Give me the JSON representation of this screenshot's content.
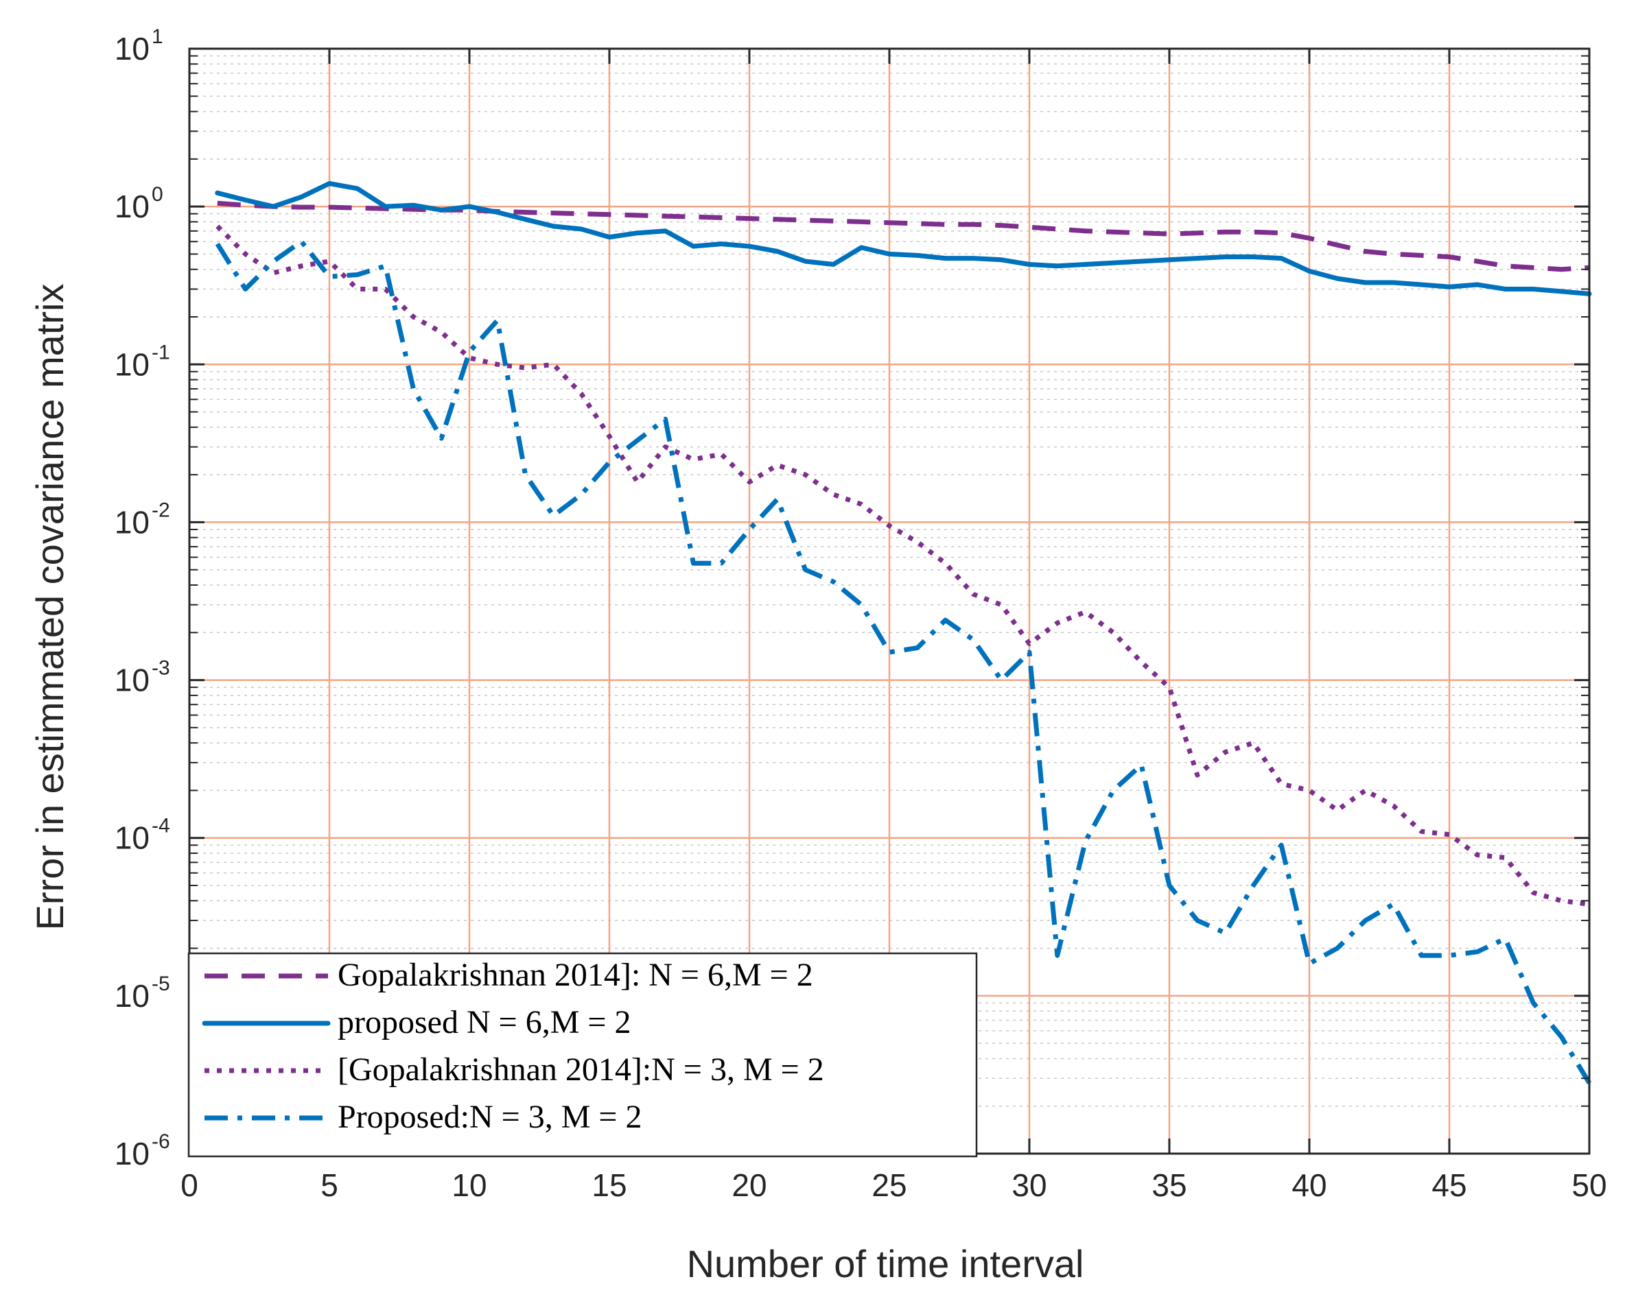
{
  "chart_data": {
    "type": "line",
    "title": "",
    "xlabel": "Number of time interval",
    "ylabel": "Error in estimmated covariance matrix",
    "xlim": [
      0,
      50
    ],
    "ylim": [
      1e-06,
      10
    ],
    "yscale": "log",
    "grid": true,
    "legend_position": "bottom-left",
    "x_ticks": [
      "0",
      "5",
      "10",
      "15",
      "20",
      "25",
      "30",
      "35",
      "40",
      "45",
      "50"
    ],
    "y_tick_base": "10",
    "y_tick_exponents": [
      "-6",
      "-5",
      "-4",
      "-3",
      "-2",
      "-1",
      "0",
      "1"
    ],
    "colors": {
      "purple": "#7e2f8e",
      "blue": "#0072bd",
      "major_grid": "#f4a582",
      "minor_grid": "#c8c8c8",
      "axis": "#262626"
    },
    "series": [
      {
        "name": "Gopalakrishnan 2014]: N = 6,M = 2",
        "color": "#7e2f8e",
        "style": "dashed",
        "x": [
          1,
          2,
          3,
          4,
          5,
          6,
          7,
          8,
          9,
          10,
          11,
          12,
          13,
          14,
          15,
          16,
          17,
          18,
          19,
          20,
          21,
          22,
          23,
          24,
          25,
          26,
          27,
          28,
          29,
          30,
          31,
          32,
          33,
          34,
          35,
          36,
          37,
          38,
          39,
          40,
          41,
          42,
          43,
          44,
          45,
          46,
          47,
          48,
          49,
          50
        ],
        "values": [
          1.05,
          1.02,
          1.0,
          0.99,
          0.99,
          0.98,
          0.97,
          0.96,
          0.95,
          0.95,
          0.93,
          0.92,
          0.91,
          0.9,
          0.89,
          0.88,
          0.87,
          0.86,
          0.85,
          0.84,
          0.83,
          0.82,
          0.81,
          0.8,
          0.79,
          0.78,
          0.77,
          0.77,
          0.76,
          0.74,
          0.72,
          0.7,
          0.69,
          0.68,
          0.67,
          0.68,
          0.69,
          0.69,
          0.68,
          0.63,
          0.57,
          0.52,
          0.5,
          0.49,
          0.48,
          0.45,
          0.42,
          0.41,
          0.4,
          0.41
        ]
      },
      {
        "name": "proposed N = 6,M = 2",
        "color": "#0072bd",
        "style": "solid",
        "x": [
          1,
          2,
          3,
          4,
          5,
          6,
          7,
          8,
          9,
          10,
          11,
          12,
          13,
          14,
          15,
          16,
          17,
          18,
          19,
          20,
          21,
          22,
          23,
          24,
          25,
          26,
          27,
          28,
          29,
          30,
          31,
          32,
          33,
          34,
          35,
          36,
          37,
          38,
          39,
          40,
          41,
          42,
          43,
          44,
          45,
          46,
          47,
          48,
          49,
          50
        ],
        "values": [
          1.22,
          1.1,
          1.0,
          1.15,
          1.4,
          1.3,
          1.0,
          1.02,
          0.95,
          1.0,
          0.92,
          0.83,
          0.75,
          0.72,
          0.64,
          0.68,
          0.7,
          0.56,
          0.58,
          0.56,
          0.52,
          0.45,
          0.43,
          0.55,
          0.5,
          0.49,
          0.47,
          0.47,
          0.46,
          0.43,
          0.42,
          0.43,
          0.44,
          0.45,
          0.46,
          0.47,
          0.48,
          0.48,
          0.47,
          0.39,
          0.35,
          0.33,
          0.33,
          0.32,
          0.31,
          0.32,
          0.3,
          0.3,
          0.29,
          0.28
        ]
      },
      {
        "name": "[Gopalakrishnan 2014]:N = 3, M = 2",
        "color": "#7e2f8e",
        "style": "dotted",
        "x": [
          1,
          2,
          3,
          4,
          5,
          6,
          7,
          8,
          9,
          10,
          11,
          12,
          13,
          14,
          15,
          16,
          17,
          18,
          19,
          20,
          21,
          22,
          23,
          24,
          25,
          26,
          27,
          28,
          29,
          30,
          31,
          32,
          33,
          34,
          35,
          36,
          37,
          38,
          39,
          40,
          41,
          42,
          43,
          44,
          45,
          46,
          47,
          48,
          49,
          50
        ],
        "values": [
          0.75,
          0.5,
          0.38,
          0.42,
          0.45,
          0.3,
          0.3,
          0.2,
          0.16,
          0.11,
          0.1,
          0.095,
          0.1,
          0.065,
          0.035,
          0.018,
          0.03,
          0.025,
          0.027,
          0.018,
          0.023,
          0.02,
          0.015,
          0.013,
          0.0095,
          0.0075,
          0.0055,
          0.0035,
          0.003,
          0.0017,
          0.0023,
          0.0027,
          0.002,
          0.0013,
          0.0009,
          0.00025,
          0.00035,
          0.0004,
          0.00022,
          0.0002,
          0.00015,
          0.0002,
          0.00016,
          0.00011,
          0.000105,
          7.8e-05,
          7.5e-05,
          4.5e-05,
          4e-05,
          3.8e-05
        ]
      },
      {
        "name": "Proposed:N = 3, M = 2",
        "color": "#0072bd",
        "style": "dashdot",
        "x": [
          1,
          2,
          3,
          4,
          5,
          6,
          7,
          8,
          9,
          10,
          11,
          12,
          13,
          14,
          15,
          16,
          17,
          18,
          19,
          20,
          21,
          22,
          23,
          24,
          25,
          26,
          27,
          28,
          29,
          30,
          31,
          32,
          33,
          34,
          35,
          36,
          37,
          38,
          39,
          40,
          41,
          42,
          43,
          44,
          45,
          46,
          47,
          48,
          49,
          50
        ],
        "values": [
          0.58,
          0.3,
          0.45,
          0.6,
          0.36,
          0.37,
          0.42,
          0.07,
          0.034,
          0.12,
          0.19,
          0.02,
          0.011,
          0.015,
          0.024,
          0.033,
          0.045,
          0.0055,
          0.0055,
          0.009,
          0.014,
          0.005,
          0.0042,
          0.003,
          0.0015,
          0.0016,
          0.0024,
          0.0018,
          0.001,
          0.0015,
          1.8e-05,
          9.5e-05,
          0.0002,
          0.00029,
          5e-05,
          3e-05,
          2.5e-05,
          5e-05,
          9e-05,
          1.6e-05,
          2e-05,
          3e-05,
          3.8e-05,
          1.8e-05,
          1.8e-05,
          1.9e-05,
          2.3e-05,
          9e-06,
          5.5e-06,
          2.8e-06
        ]
      }
    ]
  }
}
